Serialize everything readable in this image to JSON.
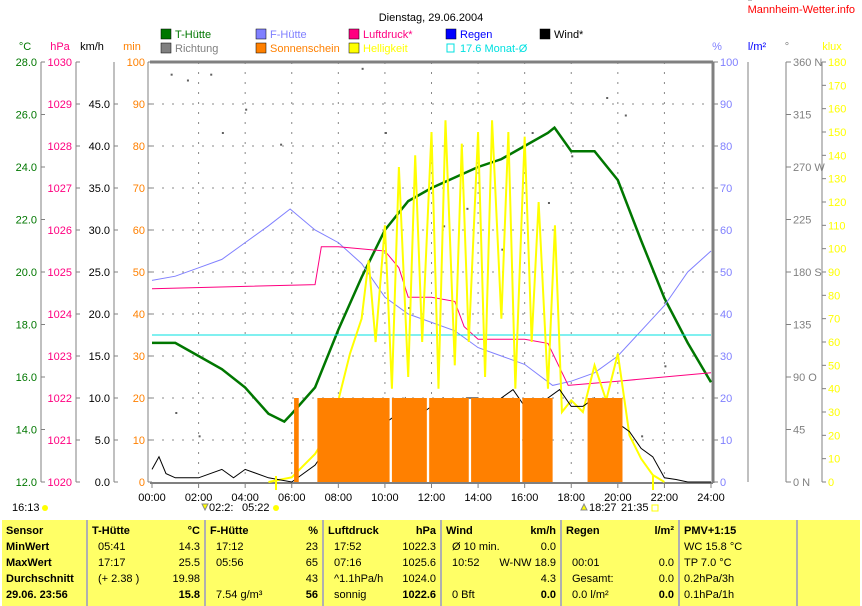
{
  "title": "Dienstag, 29.06.2004",
  "site": "Mannheim-Wetter.info",
  "legend": [
    {
      "label": "T-Hütte",
      "color": "#007700"
    },
    {
      "label": "Richtung",
      "color": "#808080"
    },
    {
      "label": "F-Hütte",
      "color": "#8080ff"
    },
    {
      "label": "Sonnenschein",
      "color": "#ff8000"
    },
    {
      "label": "Luftdruck*",
      "color": "#ff0080"
    },
    {
      "label": "Helligkeit",
      "color": "#ffff00"
    },
    {
      "label": "Regen",
      "color": "#0000ff"
    },
    {
      "label": "17.6 Monat-Ø",
      "color": "#00e0e0"
    },
    {
      "label": "Wind*",
      "color": "#000000"
    }
  ],
  "chart_data": {
    "type": "line",
    "title": "Dienstag, 29.06.2004",
    "x_ticks": [
      "00:00",
      "02:00",
      "04:00",
      "06:00",
      "08:00",
      "10:00",
      "12:00",
      "14:00",
      "16:00",
      "18:00",
      "20:00",
      "22:00",
      "24:00"
    ],
    "axes": {
      "temp": {
        "unit": "°C",
        "range": [
          12,
          28
        ],
        "ticks": [
          "12.0",
          "14.0",
          "16.0",
          "18.0",
          "20.0",
          "22.0",
          "24.0",
          "26.0",
          "28.0"
        ],
        "color": "#007700"
      },
      "pressure": {
        "unit": "hPa",
        "range": [
          1020,
          1030
        ],
        "ticks": [
          "1020",
          "1021",
          "1022",
          "1023",
          "1024",
          "1025",
          "1026",
          "1027",
          "1028",
          "1029",
          "1030"
        ],
        "color": "#ff0080"
      },
      "wind": {
        "unit": "km/h",
        "range": [
          0,
          50
        ],
        "ticks": [
          "0.0",
          "5.0",
          "10.0",
          "15.0",
          "20.0",
          "25.0",
          "30.0",
          "35.0",
          "40.0",
          "45.0"
        ],
        "color": "#000000"
      },
      "sun": {
        "unit": "min",
        "range": [
          0,
          100
        ],
        "ticks": [
          "0",
          "10",
          "20",
          "30",
          "40",
          "50",
          "60",
          "70",
          "80",
          "90",
          "100"
        ],
        "color": "#ff8000"
      },
      "humidity": {
        "unit": "%",
        "range": [
          0,
          100
        ],
        "ticks": [
          "0",
          "10",
          "20",
          "30",
          "40",
          "50",
          "60",
          "70",
          "80",
          "90",
          "100"
        ],
        "color": "#8080ff"
      },
      "rain": {
        "unit": "l/m²",
        "ticks": [
          "0.0"
        ],
        "color": "#0000ff"
      },
      "direction": {
        "unit": "°",
        "range": [
          0,
          360
        ],
        "ticks": [
          "0  N",
          "45",
          "90  O",
          "135",
          "180 S",
          "225",
          "270 W",
          "315",
          "360 N"
        ],
        "color": "#808080"
      },
      "light": {
        "unit": "klux",
        "range": [
          0,
          180
        ],
        "ticks": [
          "0",
          "10",
          "20",
          "30",
          "40",
          "50",
          "60",
          "70",
          "80",
          "90",
          "100",
          "110",
          "120",
          "130",
          "140",
          "150",
          "160",
          "170",
          "180"
        ],
        "color": "#ffff00"
      }
    },
    "series": [
      {
        "name": "T-Hütte",
        "axis": "temp",
        "x": [
          0,
          1,
          2,
          3,
          4,
          5,
          5.68,
          6,
          7,
          8,
          9,
          10,
          11,
          12,
          13,
          14,
          15,
          16,
          17,
          17.28,
          18,
          19,
          20,
          21,
          22,
          23,
          24
        ],
        "y": [
          17.3,
          17.3,
          16.8,
          16.3,
          15.6,
          14.6,
          14.3,
          14.6,
          15.6,
          17.8,
          19.8,
          21.6,
          22.7,
          23.2,
          23.6,
          24.0,
          24.3,
          24.8,
          25.3,
          25.5,
          24.6,
          24.6,
          23.5,
          21.2,
          19.0,
          17.3,
          15.8
        ]
      },
      {
        "name": "F-Hütte",
        "axis": "humidity",
        "x": [
          0,
          1,
          2,
          3,
          4,
          5,
          5.93,
          7,
          8,
          9,
          10,
          11,
          12,
          13,
          14,
          15,
          16,
          17.2,
          18,
          19,
          20,
          21,
          22,
          23,
          24
        ],
        "y": [
          48,
          49,
          51,
          53,
          57,
          61,
          65,
          60,
          57,
          52,
          44,
          40,
          38,
          36,
          32,
          30,
          28,
          23,
          24,
          26,
          30,
          36,
          42,
          50,
          55
        ]
      },
      {
        "name": "Luftdruck*",
        "axis": "pressure",
        "x": [
          0,
          7,
          7.27,
          8,
          10,
          10.6,
          11,
          12,
          13,
          13.4,
          14,
          16,
          17,
          17.87,
          20,
          24
        ],
        "y": [
          1024.6,
          1024.7,
          1025.6,
          1025.6,
          1025.5,
          1025.1,
          1024.4,
          1024.4,
          1024.3,
          1023.7,
          1023.4,
          1023.4,
          1023.3,
          1022.3,
          1022.4,
          1022.6
        ]
      },
      {
        "name": "Monat-Ø",
        "axis": "temp",
        "x": [
          0,
          24
        ],
        "y": [
          17.6,
          17.6
        ]
      },
      {
        "name": "Helligkeit",
        "axis": "light",
        "x": [
          5,
          6,
          7,
          7.5,
          8,
          8.5,
          9,
          9.3,
          9.6,
          10,
          10.3,
          10.6,
          11,
          11.3,
          11.6,
          12,
          12.3,
          12.6,
          13,
          13.3,
          13.6,
          14,
          14.3,
          14.6,
          15,
          15.3,
          15.6,
          16,
          16.3,
          16.6,
          17,
          17.3,
          17.6,
          18,
          18.5,
          19,
          19.5,
          20,
          20.5,
          21,
          21.5,
          22
        ],
        "y": [
          0,
          2,
          12,
          20,
          35,
          55,
          70,
          95,
          60,
          110,
          40,
          135,
          45,
          140,
          60,
          150,
          40,
          155,
          50,
          145,
          60,
          150,
          45,
          155,
          70,
          150,
          40,
          148,
          60,
          120,
          40,
          110,
          30,
          35,
          30,
          50,
          35,
          55,
          20,
          10,
          3,
          0
        ]
      },
      {
        "name": "Wind*",
        "axis": "wind",
        "x": [
          0,
          0.3,
          0.6,
          1,
          2,
          3,
          3.5,
          4,
          5,
          6,
          7,
          7.5,
          8,
          8.5,
          9,
          9.5,
          10,
          10.5,
          10.87,
          11,
          11.5,
          12,
          12.5,
          13,
          13.5,
          14,
          14.5,
          15,
          15.5,
          16,
          16.5,
          17,
          17.5,
          18,
          18.5,
          19,
          19.5,
          20,
          20.5,
          21,
          21.5,
          22,
          22.5,
          23,
          24
        ],
        "y": [
          1.5,
          3,
          1,
          0.5,
          0.5,
          1.5,
          0.5,
          1.5,
          0.5,
          0,
          2,
          4,
          3,
          5,
          4,
          6,
          7,
          8,
          10,
          9,
          8,
          9,
          10,
          9,
          10,
          10,
          8,
          10,
          11,
          9,
          8,
          10,
          11,
          9,
          9,
          10,
          8,
          7,
          6,
          4,
          3,
          0.5,
          0.3,
          0,
          0
        ]
      },
      {
        "name": "Sonnenschein",
        "axis": "sun",
        "type": "bar",
        "intervals": [
          [
            6.1,
            6.3
          ],
          [
            7.1,
            10.2
          ],
          [
            10.3,
            11.8
          ],
          [
            11.9,
            13.6
          ],
          [
            13.7,
            15.8
          ],
          [
            15.9,
            17.2
          ],
          [
            18.7,
            20.2
          ]
        ],
        "value": 5
      }
    ],
    "direction_points": [
      [
        0.8,
        350
      ],
      [
        1.5,
        345
      ],
      [
        2.5,
        350
      ],
      [
        3,
        300
      ],
      [
        4,
        320
      ],
      [
        5.5,
        290
      ],
      [
        9,
        355
      ],
      [
        10,
        300
      ],
      [
        12.5,
        220
      ],
      [
        13.5,
        235
      ],
      [
        15,
        200
      ],
      [
        16.3,
        300
      ],
      [
        17,
        240
      ],
      [
        18,
        280
      ],
      [
        19.5,
        330
      ],
      [
        20.3,
        315
      ],
      [
        22,
        100
      ],
      [
        20,
        60
      ],
      [
        21,
        40
      ],
      [
        11,
        150
      ],
      [
        1,
        60
      ],
      [
        2,
        40
      ]
    ],
    "sun_events": {
      "left": "16:13",
      "moonset": "02:2:",
      "sunrise": "05:22",
      "sunset": "21:35",
      "moonrise": "18:27"
    }
  },
  "table": {
    "cols": [
      {
        "rows": [
          [
            "Sensor",
            ""
          ],
          [
            "MinWert",
            ""
          ],
          [
            "MaxWert",
            ""
          ],
          [
            "Durchschnitt",
            ""
          ],
          [
            "29.06. 23:56",
            ""
          ]
        ]
      },
      {
        "rows": [
          [
            "T-Hütte",
            "°C"
          ],
          [
            "05:41",
            "14.3"
          ],
          [
            "17:17",
            "25.5"
          ],
          [
            "(+ 2.38 )",
            "19.98"
          ],
          [
            "",
            "15.8"
          ]
        ]
      },
      {
        "rows": [
          [
            "F-Hütte",
            "%"
          ],
          [
            "17:12",
            "23"
          ],
          [
            "05:56",
            "65"
          ],
          [
            "",
            "43"
          ],
          [
            "7.54 g/m³",
            "56"
          ]
        ]
      },
      {
        "rows": [
          [
            "Luftdruck",
            "hPa"
          ],
          [
            "17:52",
            "1022.3"
          ],
          [
            "07:16",
            "1025.6"
          ],
          [
            "^1.1hPa/h",
            "1024.0"
          ],
          [
            "sonnig",
            "1022.6"
          ]
        ]
      },
      {
        "rows": [
          [
            "Wind",
            "km/h"
          ],
          [
            "Ø 10 min.",
            "0.0"
          ],
          [
            "10:52",
            "W-NW 18.9"
          ],
          [
            "",
            "4.3"
          ],
          [
            "0 Bft",
            "0.0"
          ]
        ]
      },
      {
        "rows": [
          [
            "Regen",
            "l/m²"
          ],
          [
            "",
            ""
          ],
          [
            "00:01",
            "0.0"
          ],
          [
            "Gesamt:",
            "0.0"
          ],
          [
            "0.0 l/m²",
            "0.0"
          ]
        ]
      },
      {
        "rows": [
          [
            "PMV+1:15",
            ""
          ],
          [
            "WC 15.8 °C",
            ""
          ],
          [
            "TP 7.0 °C",
            ""
          ],
          [
            "0.2hPa/3h",
            ""
          ],
          [
            "0.1hPa/1h",
            ""
          ]
        ]
      }
    ]
  }
}
